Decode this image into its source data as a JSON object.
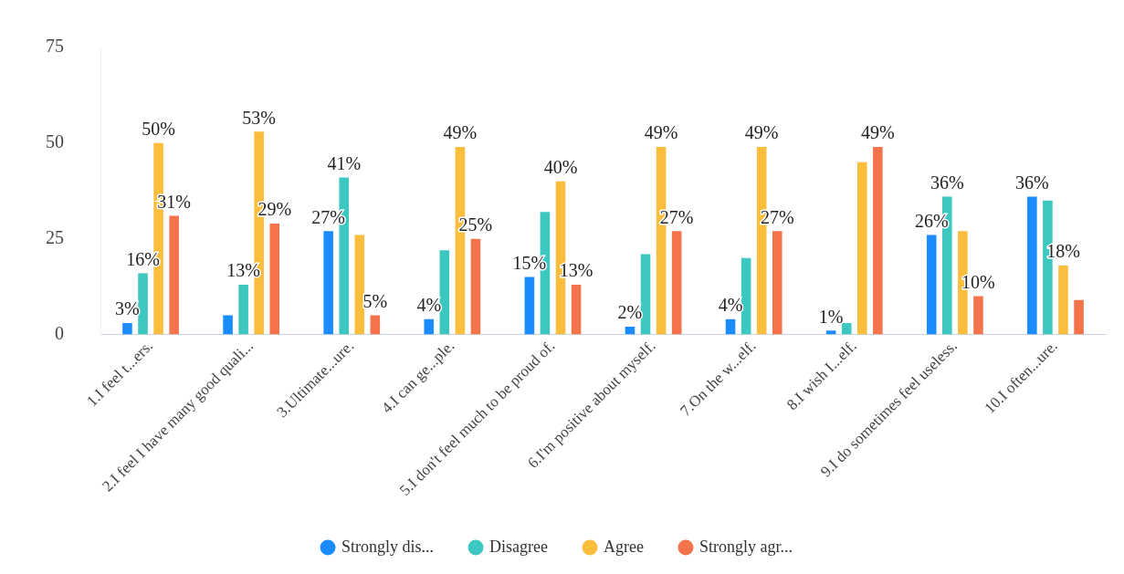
{
  "chart_data": {
    "type": "bar",
    "categories": [
      "1.I feel t...ers.",
      "2.I feel I have many good quali...",
      "3.Ultimate...ure.",
      "4.I can ge...ple.",
      "5.I don't feel much to be proud of.",
      "6.I'm positive about myself.",
      "7.On the w...elf.",
      "8.I wish I...elf.",
      "9.I do sometimes feel useless.",
      "10.I often...ure."
    ],
    "series": [
      {
        "name": "Strongly dis...",
        "color": "#1a8cff",
        "values": [
          3,
          5,
          27,
          4,
          15,
          2,
          4,
          1,
          26,
          36
        ],
        "value_labels": [
          "3%",
          null,
          "27%",
          "4%",
          "15%",
          "2%",
          "4%",
          "1%",
          "26%",
          "36%"
        ]
      },
      {
        "name": "Disagree",
        "color": "#3cc8c0",
        "values": [
          16,
          13,
          41,
          22,
          32,
          21,
          20,
          3,
          36,
          35
        ],
        "value_labels": [
          "16%",
          "13%",
          "41%",
          null,
          null,
          null,
          null,
          null,
          "36%",
          null
        ]
      },
      {
        "name": "Agree",
        "color": "#fbbd3c",
        "values": [
          50,
          53,
          26,
          49,
          40,
          49,
          49,
          45,
          27,
          18
        ],
        "value_labels": [
          "50%",
          "53%",
          null,
          "49%",
          "40%",
          "49%",
          "49%",
          null,
          null,
          "18%"
        ]
      },
      {
        "name": "Strongly agr...",
        "color": "#f5734a",
        "values": [
          31,
          29,
          5,
          25,
          13,
          27,
          27,
          49,
          10,
          9
        ],
        "value_labels": [
          "31%",
          "29%",
          "5%",
          "25%",
          "13%",
          "27%",
          "27%",
          "49%",
          "10%",
          null
        ]
      }
    ],
    "ylim": [
      0,
      75
    ],
    "yticks": [
      0,
      25,
      50,
      75
    ],
    "grid": false,
    "legend": "bottom",
    "marker": "circle"
  }
}
